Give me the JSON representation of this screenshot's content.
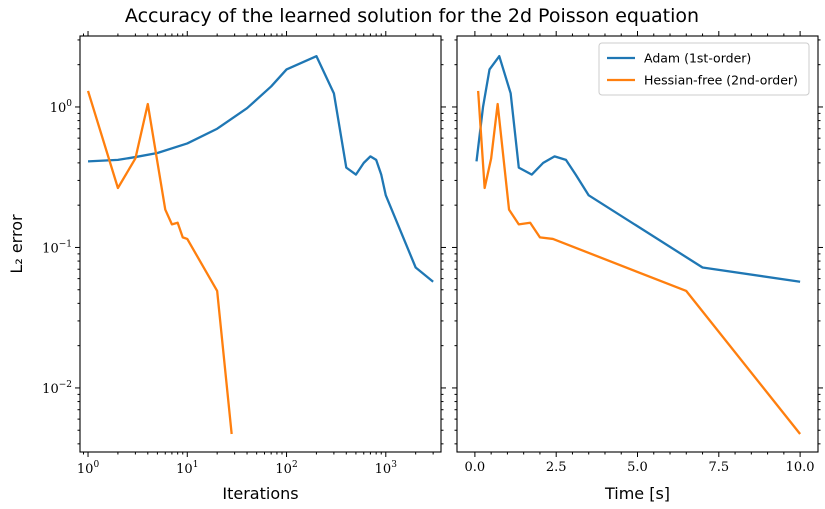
{
  "title": "Accuracy of the learned solution for the 2d Poisson equation",
  "chart_data": [
    {
      "type": "line",
      "xlabel": "Iterations",
      "ylabel": "L₂ error",
      "xscale": "log",
      "yscale": "log",
      "xlim": [
        0.83,
        3600
      ],
      "ylim": [
        0.0035,
        3.2
      ],
      "xticks": [
        {
          "value": 1,
          "base": "10",
          "exp": "0"
        },
        {
          "value": 10,
          "base": "10",
          "exp": "1"
        },
        {
          "value": 100,
          "base": "10",
          "exp": "2"
        },
        {
          "value": 1000,
          "base": "10",
          "exp": "3"
        }
      ],
      "yticks": [
        {
          "value": 0.01,
          "base": "10",
          "exp": "−2"
        },
        {
          "value": 0.1,
          "base": "10",
          "exp": "−1"
        },
        {
          "value": 1,
          "base": "10",
          "exp": "0"
        }
      ],
      "grid": false,
      "series": [
        {
          "color": "#1f77b4",
          "points": [
            [
              1,
              0.41
            ],
            [
              2,
              0.42
            ],
            [
              3,
              0.44
            ],
            [
              5,
              0.47
            ],
            [
              10,
              0.55
            ],
            [
              20,
              0.7
            ],
            [
              40,
              0.98
            ],
            [
              70,
              1.4
            ],
            [
              100,
              1.85
            ],
            [
              150,
              2.1
            ],
            [
              200,
              2.3
            ],
            [
              300,
              1.25
            ],
            [
              400,
              0.37
            ],
            [
              500,
              0.33
            ],
            [
              600,
              0.4
            ],
            [
              700,
              0.445
            ],
            [
              800,
              0.42
            ],
            [
              900,
              0.33
            ],
            [
              1000,
              0.235
            ],
            [
              2000,
              0.072
            ],
            [
              3000,
              0.057
            ]
          ]
        },
        {
          "color": "#ff7f0e",
          "points": [
            [
              1,
              1.3
            ],
            [
              2,
              0.265
            ],
            [
              3,
              0.43
            ],
            [
              4,
              1.05
            ],
            [
              6,
              0.186
            ],
            [
              7,
              0.146
            ],
            [
              8,
              0.15
            ],
            [
              9,
              0.118
            ],
            [
              10,
              0.115
            ],
            [
              20,
              0.049
            ],
            [
              28,
              0.0047
            ]
          ]
        }
      ]
    },
    {
      "type": "line",
      "xlabel": "Time [s]",
      "xscale": "linear",
      "yscale": "log",
      "xlim": [
        -0.55,
        10.55
      ],
      "ylim": [
        0.0035,
        3.2
      ],
      "xticks": [
        "0.0",
        "2.5",
        "5.0",
        "7.5",
        "10.0"
      ],
      "grid": false,
      "legend": {
        "position": "top-right",
        "entries": [
          {
            "name": "Adam (1st-order)",
            "color": "#1f77b4"
          },
          {
            "name": "Hessian-free (2nd-order)",
            "color": "#ff7f0e"
          }
        ]
      },
      "series": [
        {
          "name": "Adam (1st-order)",
          "color": "#1f77b4",
          "points": [
            [
              0.05,
              0.41
            ],
            [
              0.25,
              1.0
            ],
            [
              0.45,
              1.85
            ],
            [
              0.75,
              2.3
            ],
            [
              1.1,
              1.25
            ],
            [
              1.35,
              0.37
            ],
            [
              1.75,
              0.33
            ],
            [
              2.1,
              0.4
            ],
            [
              2.45,
              0.445
            ],
            [
              2.8,
              0.42
            ],
            [
              3.1,
              0.33
            ],
            [
              3.5,
              0.235
            ],
            [
              7.0,
              0.072
            ],
            [
              10.0,
              0.057
            ]
          ]
        },
        {
          "name": "Hessian-free (2nd-order)",
          "color": "#ff7f0e",
          "points": [
            [
              0.1,
              1.3
            ],
            [
              0.3,
              0.265
            ],
            [
              0.5,
              0.43
            ],
            [
              0.7,
              1.05
            ],
            [
              1.05,
              0.186
            ],
            [
              1.35,
              0.146
            ],
            [
              1.7,
              0.15
            ],
            [
              2.0,
              0.118
            ],
            [
              2.4,
              0.115
            ],
            [
              6.5,
              0.049
            ],
            [
              10.0,
              0.0047
            ]
          ]
        }
      ]
    }
  ]
}
